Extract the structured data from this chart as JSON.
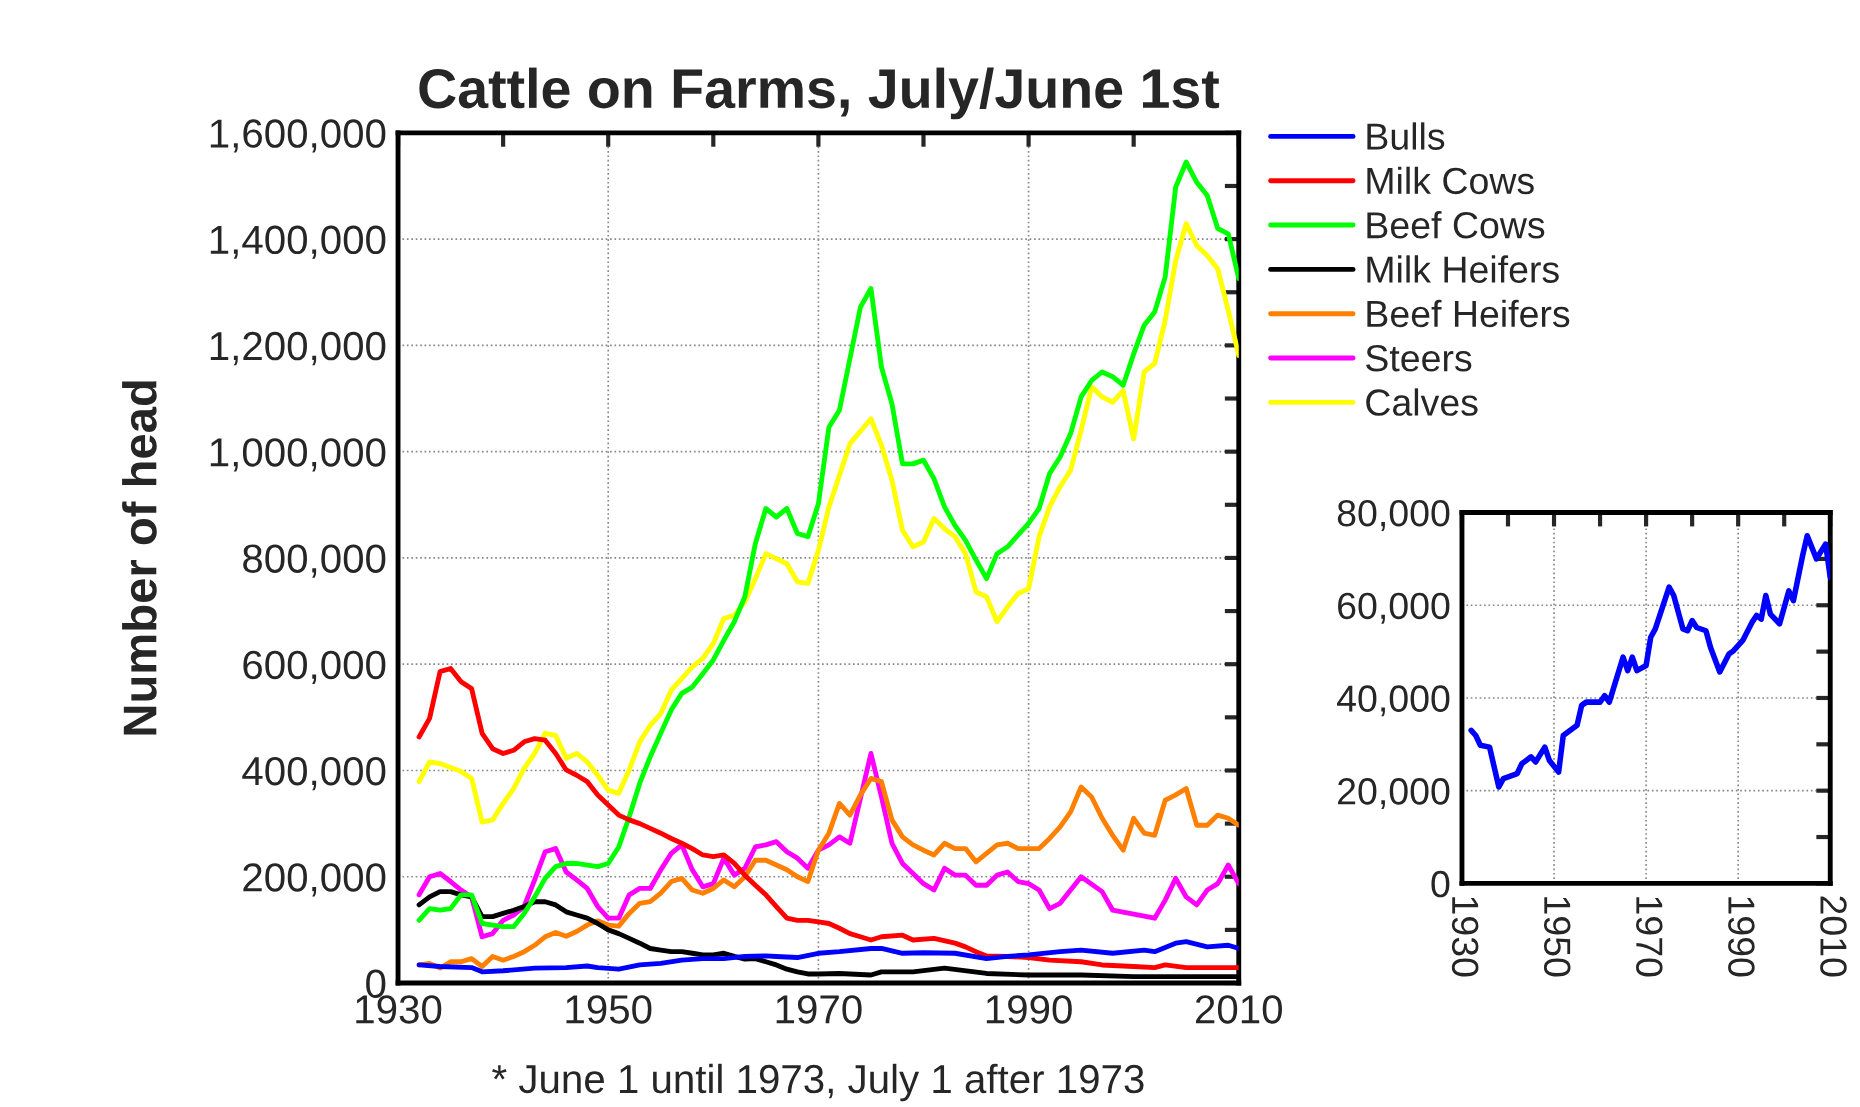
{
  "chart_data": [
    {
      "type": "line",
      "title": "Cattle on Farms, July/June 1st",
      "ylabel": "Number of head",
      "legend": "right",
      "grid": true,
      "xlim": [
        1930,
        2010
      ],
      "ylim": [
        0,
        1600000
      ],
      "xticks": [
        1930,
        {
          "value": 1940,
          "label": null
        },
        1950,
        {
          "value": 1960,
          "label": null
        },
        1970,
        {
          "value": 1980,
          "label": null
        },
        1990,
        {
          "value": 2000,
          "label": null
        },
        2010
      ],
      "yticks": [
        0,
        {
          "value": 100000,
          "label": null
        },
        {
          "value": 200000,
          "label": "200,000"
        },
        {
          "value": 300000,
          "label": null
        },
        {
          "value": 400000,
          "label": "400,000"
        },
        {
          "value": 500000,
          "label": null
        },
        {
          "value": 600000,
          "label": "600,000"
        },
        {
          "value": 700000,
          "label": null
        },
        {
          "value": 800000,
          "label": "800,000"
        },
        {
          "value": 900000,
          "label": null
        },
        {
          "value": 1000000,
          "label": "1,000,000"
        },
        {
          "value": 1100000,
          "label": null
        },
        {
          "value": 1200000,
          "label": "1,200,000"
        },
        {
          "value": 1300000,
          "label": null
        },
        {
          "value": 1400000,
          "label": "1,400,000"
        },
        {
          "value": 1500000,
          "label": null
        },
        {
          "value": 1600000,
          "label": "1,600,000"
        }
      ],
      "annotations": [
        "* June 1 until 1973, July 1 after 1973"
      ],
      "series": [
        {
          "name": "Bulls",
          "color": "#0000ff",
          "x": [
            1932,
            1934,
            1937,
            1938,
            1940,
            1943,
            1946,
            1948,
            1949,
            1951,
            1953,
            1955,
            1957,
            1959,
            1961,
            1963,
            1965,
            1966,
            1968,
            1970,
            1972,
            1975,
            1976,
            1978,
            1980,
            1983,
            1986,
            1988,
            1990,
            1993,
            1995,
            1998,
            2001,
            2002,
            2004,
            2005,
            2007,
            2009,
            2010
          ],
          "values": [
            34000,
            31000,
            29000,
            21000,
            23000,
            28000,
            29000,
            32000,
            29000,
            26000,
            34000,
            37000,
            43000,
            46000,
            46000,
            50000,
            51000,
            50000,
            48000,
            56000,
            59000,
            65000,
            65000,
            56000,
            57000,
            56000,
            46000,
            50000,
            53000,
            59000,
            62000,
            56000,
            62000,
            59000,
            75000,
            78000,
            68000,
            71000,
            65000
          ]
        },
        {
          "name": "Milk Cows",
          "color": "#ff0000",
          "x": [
            1932,
            1933,
            1934,
            1935,
            1936,
            1937,
            1938,
            1939,
            1940,
            1941,
            1942,
            1943,
            1944,
            1945,
            1946,
            1947,
            1948,
            1949,
            1950,
            1951,
            1952,
            1953,
            1954,
            1955,
            1956,
            1957,
            1958,
            1959,
            1960,
            1961,
            1962,
            1963,
            1964,
            1965,
            1966,
            1967,
            1968,
            1969,
            1970,
            1971,
            1972,
            1973,
            1974,
            1975,
            1976,
            1978,
            1979,
            1981,
            1983,
            1984,
            1985,
            1986,
            1988,
            1990,
            1992,
            1995,
            1997,
            2000,
            2002,
            2003,
            2005,
            2010
          ],
          "values": [
            463000,
            498000,
            586000,
            592000,
            567000,
            554000,
            470000,
            441000,
            432000,
            438000,
            454000,
            460000,
            457000,
            432000,
            401000,
            391000,
            379000,
            354000,
            335000,
            316000,
            307000,
            300000,
            291000,
            282000,
            272000,
            263000,
            253000,
            241000,
            238000,
            241000,
            225000,
            203000,
            184000,
            166000,
            144000,
            122000,
            118000,
            118000,
            115000,
            112000,
            103000,
            93000,
            87000,
            81000,
            87000,
            90000,
            81000,
            84000,
            75000,
            68000,
            59000,
            51000,
            50000,
            48000,
            43000,
            40000,
            34000,
            31000,
            29000,
            34000,
            29000,
            29000
          ]
        },
        {
          "name": "Beef Cows",
          "color": "#00ff00",
          "x": [
            1932,
            1933,
            1934,
            1935,
            1936,
            1937,
            1938,
            1939,
            1940,
            1941,
            1942,
            1943,
            1944,
            1945,
            1946,
            1947,
            1948,
            1949,
            1950,
            1951,
            1952,
            1953,
            1954,
            1955,
            1956,
            1957,
            1958,
            1959,
            1960,
            1961,
            1962,
            1963,
            1964,
            1965,
            1966,
            1967,
            1968,
            1969,
            1970,
            1971,
            1972,
            1974,
            1975,
            1976,
            1977,
            1978,
            1979,
            1980,
            1981,
            1982,
            1983,
            1984,
            1985,
            1986,
            1987,
            1988,
            1990,
            1991,
            1992,
            1993,
            1994,
            1995,
            1996,
            1997,
            1998,
            1999,
            2000,
            2001,
            2002,
            2003,
            2004,
            2005,
            2006,
            2007,
            2008,
            2009,
            2010
          ],
          "values": [
            118000,
            140000,
            137000,
            140000,
            166000,
            166000,
            112000,
            109000,
            106000,
            106000,
            131000,
            162000,
            197000,
            219000,
            225000,
            225000,
            222000,
            219000,
            225000,
            256000,
            313000,
            376000,
            426000,
            470000,
            514000,
            545000,
            557000,
            582000,
            608000,
            645000,
            680000,
            727000,
            827000,
            893000,
            877000,
            893000,
            846000,
            840000,
            902000,
            1046000,
            1078000,
            1272000,
            1307000,
            1159000,
            1090000,
            977000,
            977000,
            984000,
            949000,
            896000,
            861000,
            833000,
            796000,
            761000,
            808000,
            821000,
            865000,
            893000,
            959000,
            990000,
            1034000,
            1103000,
            1134000,
            1150000,
            1141000,
            1125000,
            1184000,
            1238000,
            1263000,
            1329000,
            1498000,
            1545000,
            1507000,
            1482000,
            1420000,
            1410000,
            1326000
          ]
        },
        {
          "name": "Milk Heifers",
          "color": "#000000",
          "x": [
            1932,
            1933,
            1934,
            1935,
            1936,
            1937,
            1938,
            1939,
            1940,
            1941,
            1942,
            1943,
            1944,
            1945,
            1946,
            1947,
            1948,
            1949,
            1950,
            1951,
            1952,
            1953,
            1954,
            1955,
            1956,
            1957,
            1958,
            1959,
            1960,
            1961,
            1962,
            1963,
            1964,
            1965,
            1966,
            1967,
            1968,
            1969,
            1970,
            1972,
            1975,
            1976,
            1979,
            1982,
            1986,
            1990,
            1995,
            2000,
            2005,
            2010
          ],
          "values": [
            147000,
            162000,
            172000,
            172000,
            166000,
            162000,
            125000,
            125000,
            131000,
            137000,
            144000,
            153000,
            153000,
            147000,
            134000,
            128000,
            122000,
            112000,
            100000,
            93000,
            84000,
            75000,
            65000,
            62000,
            59000,
            59000,
            56000,
            53000,
            53000,
            56000,
            50000,
            45000,
            46000,
            40000,
            34000,
            26000,
            21000,
            17000,
            17000,
            18000,
            15000,
            21000,
            21000,
            28000,
            18000,
            15000,
            15000,
            12000,
            12000,
            12000
          ]
        },
        {
          "name": "Beef Heifers",
          "color": "#ff8000",
          "x": [
            1932,
            1933,
            1934,
            1935,
            1936,
            1937,
            1938,
            1939,
            1940,
            1941,
            1942,
            1943,
            1944,
            1945,
            1946,
            1947,
            1948,
            1949,
            1950,
            1951,
            1952,
            1953,
            1954,
            1955,
            1956,
            1957,
            1958,
            1959,
            1960,
            1961,
            1962,
            1963,
            1964,
            1965,
            1966,
            1967,
            1968,
            1969,
            1970,
            1971,
            1972,
            1973,
            1974,
            1975,
            1976,
            1977,
            1978,
            1979,
            1980,
            1981,
            1982,
            1983,
            1984,
            1985,
            1986,
            1987,
            1988,
            1989,
            1991,
            1992,
            1993,
            1994,
            1995,
            1996,
            1997,
            1998,
            1999,
            2000,
            2001,
            2002,
            2003,
            2004,
            2005,
            2006,
            2007,
            2008,
            2009,
            2010
          ],
          "values": [
            34000,
            37000,
            28000,
            40000,
            40000,
            46000,
            31000,
            50000,
            43000,
            50000,
            59000,
            71000,
            87000,
            95000,
            88000,
            97000,
            109000,
            117000,
            109000,
            107000,
            131000,
            150000,
            153000,
            169000,
            191000,
            197000,
            175000,
            169000,
            178000,
            194000,
            181000,
            200000,
            231000,
            231000,
            222000,
            213000,
            200000,
            191000,
            250000,
            282000,
            338000,
            316000,
            354000,
            385000,
            379000,
            307000,
            275000,
            260000,
            250000,
            241000,
            263000,
            253000,
            253000,
            228000,
            244000,
            260000,
            263000,
            253000,
            253000,
            272000,
            294000,
            322000,
            369000,
            350000,
            310000,
            278000,
            250000,
            310000,
            282000,
            278000,
            344000,
            354000,
            366000,
            297000,
            297000,
            316000,
            310000,
            297000
          ]
        },
        {
          "name": "Steers",
          "color": "#ff00ff",
          "x": [
            1932,
            1933,
            1934,
            1935,
            1936,
            1937,
            1938,
            1939,
            1940,
            1941,
            1942,
            1943,
            1944,
            1945,
            1946,
            1947,
            1948,
            1949,
            1950,
            1951,
            1952,
            1953,
            1954,
            1955,
            1956,
            1957,
            1958,
            1959,
            1960,
            1961,
            1962,
            1963,
            1964,
            1965,
            1966,
            1967,
            1968,
            1969,
            1970,
            1971,
            1972,
            1973,
            1975,
            1976,
            1977,
            1978,
            1979,
            1980,
            1981,
            1982,
            1983,
            1984,
            1985,
            1986,
            1987,
            1988,
            1989,
            1990,
            1991,
            1992,
            1993,
            1995,
            1997,
            1998,
            2002,
            2003,
            2004,
            2005,
            2006,
            2007,
            2008,
            2009,
            2010
          ],
          "values": [
            166000,
            200000,
            206000,
            191000,
            175000,
            162000,
            87000,
            93000,
            118000,
            128000,
            144000,
            194000,
            247000,
            253000,
            209000,
            194000,
            178000,
            144000,
            122000,
            122000,
            166000,
            178000,
            178000,
            213000,
            244000,
            260000,
            213000,
            181000,
            187000,
            235000,
            203000,
            216000,
            256000,
            260000,
            266000,
            247000,
            235000,
            216000,
            250000,
            260000,
            275000,
            263000,
            432000,
            350000,
            263000,
            225000,
            206000,
            187000,
            175000,
            216000,
            203000,
            203000,
            184000,
            184000,
            203000,
            209000,
            191000,
            187000,
            175000,
            140000,
            150000,
            200000,
            172000,
            137000,
            122000,
            156000,
            197000,
            162000,
            147000,
            175000,
            187000,
            222000,
            187000
          ]
        },
        {
          "name": "Calves",
          "color": "#ffff00",
          "x": [
            1932,
            1933,
            1934,
            1936,
            1937,
            1938,
            1939,
            1940,
            1941,
            1942,
            1943,
            1944,
            1945,
            1946,
            1947,
            1948,
            1949,
            1950,
            1951,
            1952,
            1953,
            1954,
            1955,
            1956,
            1957,
            1958,
            1959,
            1960,
            1961,
            1962,
            1963,
            1964,
            1965,
            1967,
            1968,
            1969,
            1970,
            1971,
            1973,
            1975,
            1976,
            1977,
            1978,
            1979,
            1980,
            1981,
            1982,
            1983,
            1984,
            1985,
            1986,
            1987,
            1988,
            1989,
            1990,
            1991,
            1992,
            1993,
            1994,
            1995,
            1996,
            1997,
            1998,
            1999,
            2000,
            2001,
            2002,
            2003,
            2004,
            2005,
            2006,
            2007,
            2008,
            2009,
            2010
          ],
          "values": [
            379000,
            416000,
            413000,
            398000,
            385000,
            303000,
            307000,
            338000,
            366000,
            404000,
            432000,
            470000,
            466000,
            423000,
            432000,
            416000,
            391000,
            363000,
            357000,
            401000,
            454000,
            485000,
            507000,
            551000,
            573000,
            595000,
            611000,
            639000,
            686000,
            692000,
            717000,
            761000,
            808000,
            789000,
            755000,
            752000,
            814000,
            896000,
            1015000,
            1062000,
            1012000,
            946000,
            852000,
            821000,
            830000,
            874000,
            855000,
            840000,
            808000,
            736000,
            727000,
            680000,
            708000,
            733000,
            742000,
            840000,
            896000,
            934000,
            965000,
            1040000,
            1122000,
            1103000,
            1093000,
            1115000,
            1024000,
            1150000,
            1166000,
            1247000,
            1360000,
            1429000,
            1388000,
            1369000,
            1344000,
            1266000,
            1181000
          ]
        }
      ]
    },
    {
      "type": "line",
      "grid": true,
      "xlim": [
        1930,
        2010
      ],
      "ylim": [
        0,
        80000
      ],
      "xticks": [
        1930,
        {
          "value": 1940,
          "label": null
        },
        1950,
        {
          "value": 1960,
          "label": null
        },
        1970,
        {
          "value": 1980,
          "label": null
        },
        1990,
        {
          "value": 2000,
          "label": null
        },
        2010
      ],
      "yticks": [
        0,
        {
          "value": 10000,
          "label": null
        },
        {
          "value": 20000,
          "label": "20,000"
        },
        {
          "value": 30000,
          "label": null
        },
        {
          "value": 40000,
          "label": "40,000"
        },
        {
          "value": 50000,
          "label": null
        },
        {
          "value": 60000,
          "label": "60,000"
        },
        {
          "value": 70000,
          "label": null
        },
        {
          "value": 80000,
          "label": "80,000"
        }
      ],
      "series": [
        {
          "color": "#0000ff",
          "x": [
            1932,
            1933,
            1934,
            1936,
            1938,
            1939,
            1942,
            1943,
            1945,
            1946,
            1948,
            1949,
            1951,
            1952,
            1955,
            1956,
            1957,
            1960,
            1961,
            1962,
            1965,
            1966,
            1967,
            1968,
            1970,
            1971,
            1972,
            1975,
            1976,
            1978,
            1979,
            1980,
            1981,
            1983,
            1984,
            1986,
            1988,
            1989,
            1991,
            1993,
            1994,
            1995,
            1996,
            1997,
            1999,
            2001,
            2002,
            2004,
            2005,
            2007,
            2009,
            2010
          ],
          "values": [
            33000,
            31900,
            29800,
            29400,
            20800,
            22600,
            23700,
            25800,
            27300,
            26200,
            29400,
            26500,
            24000,
            31900,
            34100,
            38400,
            39100,
            39100,
            40500,
            39100,
            48800,
            45900,
            48800,
            45900,
            47000,
            53100,
            54900,
            63900,
            62100,
            54900,
            54500,
            56700,
            55200,
            54500,
            50900,
            45600,
            49500,
            50200,
            52400,
            56300,
            57800,
            57000,
            62100,
            58100,
            56000,
            63100,
            61000,
            70700,
            75000,
            70000,
            73200,
            66000
          ]
        }
      ]
    }
  ]
}
